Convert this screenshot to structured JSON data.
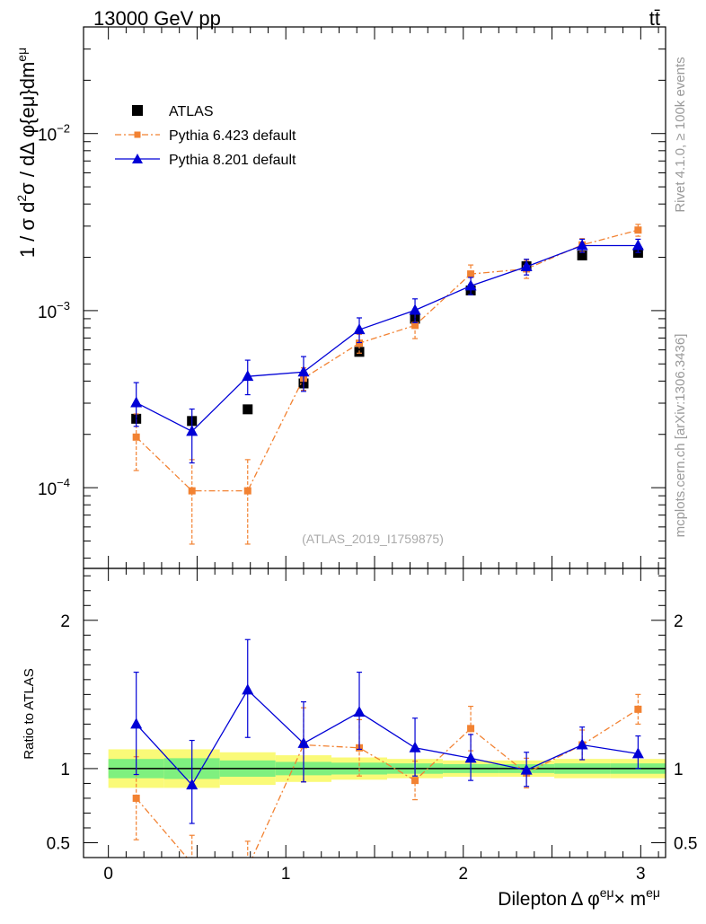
{
  "header": {
    "left": "13000 GeV pp",
    "right": "tt̄"
  },
  "side_labels": {
    "rivet": "Rivet 4.1.0, ≥ 100k events",
    "mcplots": "mcplots.cern.ch [arXiv:1306.3436]"
  },
  "analysis_id": "(ATLAS_2019_I1759875)",
  "colors": {
    "data": "#000000",
    "pythia6": "#f28232",
    "pythia8": "#0000d6",
    "band_inner": "#7ff07f",
    "band_outer": "#fafa78"
  },
  "chart_data": [
    {
      "type": "scatter",
      "panel": "main",
      "ylabel": "1 / σ d²σ / dΔ φ{eμ}dm^eμ",
      "ylabel_parts": {
        "a": "1 / σ  d",
        "b": "2",
        "c": "σ / dΔ φ{eμ}dm",
        "d": "eμ"
      },
      "yscale": "log",
      "ylim": [
        3.5e-05,
        0.04
      ],
      "xlim": [
        -0.14,
        3.14
      ],
      "yticks": [
        {
          "v": 0.0001,
          "base": "10",
          "exp": "−4"
        },
        {
          "v": 0.001,
          "base": "10",
          "exp": "−3"
        },
        {
          "v": 0.01,
          "base": "10",
          "exp": "−2"
        }
      ],
      "x": [
        0.157,
        0.471,
        0.785,
        1.1,
        1.414,
        1.728,
        2.042,
        2.356,
        2.67,
        2.985
      ],
      "series": [
        {
          "name": "ATLAS",
          "marker": "square",
          "values": [
            0.000245,
            0.000238,
            0.000277,
            0.000388,
            0.000585,
            0.0009,
            0.0013,
            0.00178,
            0.00205,
            0.00212
          ],
          "err": [
            1.5e-05,
            1.5e-05,
            1.2e-05,
            2e-05,
            3e-05,
            5e-05,
            8e-05,
            0.0001,
            0.0001,
            0.0001
          ]
        },
        {
          "name": "Pythia 6.423 default",
          "marker": "square-small",
          "style": "dashdot",
          "values": [
            0.000193,
            9.6e-05,
            9.6e-05,
            0.000415,
            0.000655,
            0.000825,
            0.00161,
            0.00172,
            0.00235,
            0.00285
          ],
          "err_lo": [
            6.8e-05,
            4.8e-05,
            4.8e-05,
            6e-05,
            8e-05,
            0.00013,
            0.0002,
            0.0002,
            0.0002,
            0.00022
          ],
          "err_hi": [
            6.8e-05,
            4.8e-05,
            4.8e-05,
            6e-05,
            8e-05,
            0.00013,
            0.0002,
            0.0002,
            0.0002,
            0.00022
          ]
        },
        {
          "name": "Pythia 8.201 default",
          "marker": "triangle",
          "style": "solid",
          "values": [
            0.000302,
            0.000208,
            0.000425,
            0.00045,
            0.00078,
            0.001005,
            0.00138,
            0.00177,
            0.00233,
            0.00233
          ],
          "err_lo": [
            8e-05,
            7e-05,
            9e-05,
            0.0001,
            0.00012,
            0.00015,
            0.00015,
            0.00018,
            0.0002,
            0.0002
          ],
          "err_hi": [
            9e-05,
            7e-05,
            0.0001,
            0.0001,
            0.00013,
            0.00016,
            0.00016,
            0.00018,
            0.0002,
            0.0002
          ]
        }
      ],
      "legend": [
        "ATLAS",
        "Pythia 6.423 default",
        "Pythia 8.201 default"
      ],
      "legend_position": "top-left"
    },
    {
      "type": "line",
      "panel": "ratio",
      "ylabel": "Ratio to ATLAS",
      "ylim": [
        0.4,
        2.35
      ],
      "yticks": [
        0.5,
        1,
        2
      ],
      "ytick_labels": [
        "0.5",
        "1",
        "2"
      ],
      "xlabel": "Dilepton Δ φ^eμ × m^eμ",
      "xlabel_parts": {
        "a": "Dilepton",
        "b": "Δ φ",
        "c": "eμ",
        "d": "× m",
        "e": "eμ"
      },
      "xticks": [
        0,
        1,
        2,
        3
      ],
      "xtick_labels": [
        "0",
        "1",
        "2",
        "3"
      ],
      "bin_edges": [
        0,
        0.314,
        0.628,
        0.942,
        1.257,
        1.571,
        1.885,
        2.199,
        2.513,
        2.827,
        3.14
      ],
      "band_inner": [
        0.065,
        0.07,
        0.055,
        0.045,
        0.04,
        0.035,
        0.03,
        0.03,
        0.035,
        0.035
      ],
      "band_outer": [
        0.13,
        0.13,
        0.11,
        0.09,
        0.075,
        0.065,
        0.055,
        0.055,
        0.065,
        0.065
      ],
      "x": [
        0.157,
        0.471,
        0.785,
        1.1,
        1.414,
        1.728,
        2.042,
        2.356,
        2.67,
        2.985
      ],
      "series": [
        {
          "name": "Pythia 6.423 default",
          "values": [
            0.8,
            0.36,
            0.33,
            1.16,
            1.14,
            0.92,
            1.27,
            0.97,
            1.16,
            1.4
          ],
          "err_lo": [
            0.28,
            0.19,
            0.18,
            0.25,
            0.19,
            0.13,
            0.15,
            0.1,
            0.1,
            0.1
          ],
          "err_hi": [
            0.28,
            0.19,
            0.18,
            0.25,
            0.19,
            0.13,
            0.15,
            0.1,
            0.1,
            0.1
          ]
        },
        {
          "name": "Pythia 8.201 default",
          "values": [
            1.3,
            0.89,
            1.53,
            1.17,
            1.38,
            1.14,
            1.07,
            0.99,
            1.16,
            1.1
          ],
          "err_lo": [
            0.34,
            0.26,
            0.32,
            0.26,
            0.25,
            0.19,
            0.15,
            0.11,
            0.1,
            0.1
          ],
          "err_hi": [
            0.35,
            0.3,
            0.34,
            0.28,
            0.27,
            0.2,
            0.16,
            0.12,
            0.12,
            0.12
          ]
        }
      ]
    }
  ]
}
